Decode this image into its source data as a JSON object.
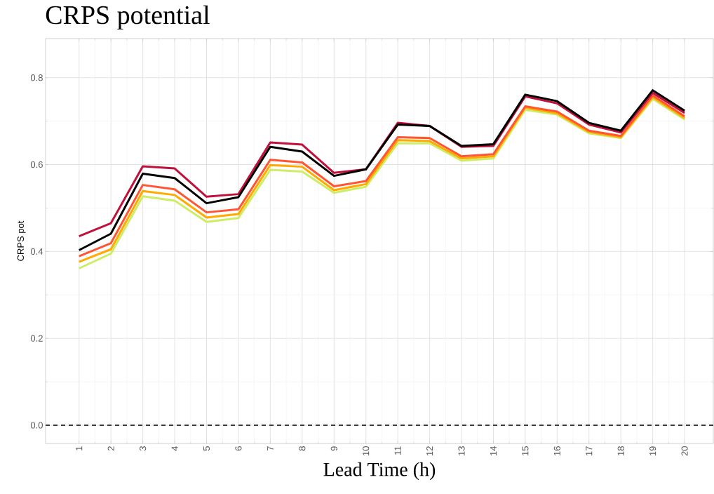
{
  "chart_data": {
    "type": "line",
    "title": "CRPS potential",
    "xlabel": "Lead Time (h)",
    "ylabel": "CRPS pot",
    "x": [
      1,
      2,
      3,
      4,
      5,
      6,
      7,
      8,
      9,
      10,
      11,
      12,
      13,
      14,
      15,
      16,
      17,
      18,
      19,
      20
    ],
    "xlim": [
      -0.05,
      20.9
    ],
    "xticks": [
      1,
      2,
      3,
      4,
      5,
      6,
      7,
      8,
      9,
      10,
      11,
      12,
      13,
      14,
      15,
      16,
      17,
      18,
      19,
      20
    ],
    "ylim": [
      -0.042,
      0.89
    ],
    "yticks": [
      {
        "value": 0,
        "label": "0.0"
      },
      {
        "value": 0.2,
        "label": "0.2"
      },
      {
        "value": 0.4,
        "label": "0.4"
      },
      {
        "value": 0.6,
        "label": "0.6"
      },
      {
        "value": 0.8,
        "label": "0.8"
      }
    ],
    "grid": true,
    "line_style": "solid",
    "marker": "none",
    "ref_lines": [
      {
        "axis": "y",
        "value": 0,
        "color": "#000000",
        "line_style": "dashed"
      }
    ],
    "series": [
      {
        "color": "#ccee66",
        "values": [
          0.361,
          0.395,
          0.527,
          0.517,
          0.468,
          0.477,
          0.588,
          0.584,
          0.535,
          0.549,
          0.649,
          0.649,
          0.609,
          0.614,
          0.726,
          0.715,
          0.672,
          0.661,
          0.751,
          0.704
        ]
      },
      {
        "color": "#ffaa00",
        "values": [
          0.376,
          0.405,
          0.539,
          0.53,
          0.478,
          0.486,
          0.599,
          0.595,
          0.541,
          0.555,
          0.656,
          0.654,
          0.614,
          0.619,
          0.731,
          0.718,
          0.675,
          0.663,
          0.755,
          0.707
        ]
      },
      {
        "color": "#ff5533",
        "values": [
          0.389,
          0.419,
          0.553,
          0.543,
          0.49,
          0.497,
          0.611,
          0.605,
          0.55,
          0.562,
          0.663,
          0.661,
          0.619,
          0.624,
          0.734,
          0.722,
          0.678,
          0.666,
          0.759,
          0.711
        ]
      },
      {
        "color": "#c0103c",
        "values": [
          0.435,
          0.465,
          0.596,
          0.591,
          0.526,
          0.532,
          0.651,
          0.646,
          0.581,
          0.589,
          0.696,
          0.689,
          0.641,
          0.643,
          0.757,
          0.741,
          0.692,
          0.674,
          0.765,
          0.719
        ]
      },
      {
        "color": "#000000",
        "values": [
          0.403,
          0.441,
          0.579,
          0.569,
          0.511,
          0.525,
          0.641,
          0.63,
          0.574,
          0.589,
          0.692,
          0.689,
          0.643,
          0.647,
          0.761,
          0.746,
          0.696,
          0.678,
          0.771,
          0.724
        ]
      }
    ]
  }
}
